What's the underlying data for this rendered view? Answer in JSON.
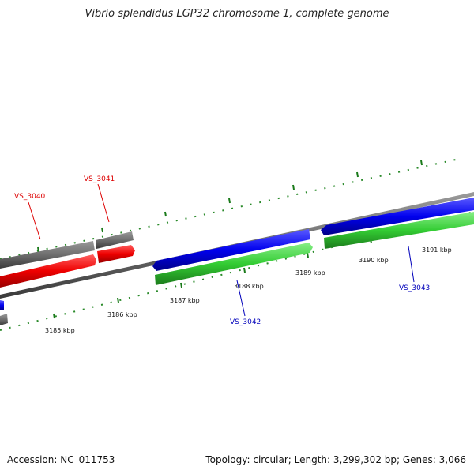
{
  "title": "Vibrio splendidus LGP32 chromosome 1, complete genome",
  "footer": {
    "accession": "Accession: NC_011753",
    "summary": "Topology: circular; Length: 3,299,302 bp; Genes: 3,066"
  },
  "colors": {
    "gene_red": "#ff0000",
    "gene_blue": "#0000ee",
    "gene_green": "#33cc33",
    "gene_gray": "#777777",
    "tick_green": "#1a7a1a",
    "label_red": "#dd0000",
    "label_blue": "#0000bb"
  },
  "scale_ticks": [
    {
      "label": "3185 kbp"
    },
    {
      "label": "3186 kbp"
    },
    {
      "label": "3187 kbp"
    },
    {
      "label": "3188 kbp"
    },
    {
      "label": "3189 kbp"
    },
    {
      "label": "3190 kbp"
    },
    {
      "label": "3191 kbp"
    }
  ],
  "gene_labels": [
    {
      "name": "VS_3040",
      "color": "red"
    },
    {
      "name": "VS_3041",
      "color": "red"
    },
    {
      "name": "VS_3042",
      "color": "blue"
    },
    {
      "name": "VS_3043",
      "color": "blue"
    }
  ]
}
